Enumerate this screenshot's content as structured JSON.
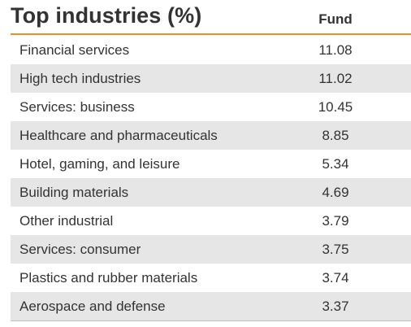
{
  "table": {
    "title": "Top industries (%)",
    "column_header": "Fund",
    "rows": [
      {
        "label": "Financial services",
        "value": "11.08"
      },
      {
        "label": "High tech industries",
        "value": "11.02"
      },
      {
        "label": "Services: business",
        "value": "10.45"
      },
      {
        "label": "Healthcare and pharmaceuticals",
        "value": "8.85"
      },
      {
        "label": "Hotel, gaming, and leisure",
        "value": "5.34"
      },
      {
        "label": "Building materials",
        "value": "4.69"
      },
      {
        "label": "Other industrial",
        "value": "3.79"
      },
      {
        "label": "Services: consumer",
        "value": "3.75"
      },
      {
        "label": "Plastics and rubber materials",
        "value": "3.74"
      },
      {
        "label": "Aerospace and defense",
        "value": "3.37"
      }
    ],
    "colors": {
      "accent_rule": "#f28c28",
      "shaded_row": "#e6e6e6",
      "text": "#333333"
    }
  }
}
